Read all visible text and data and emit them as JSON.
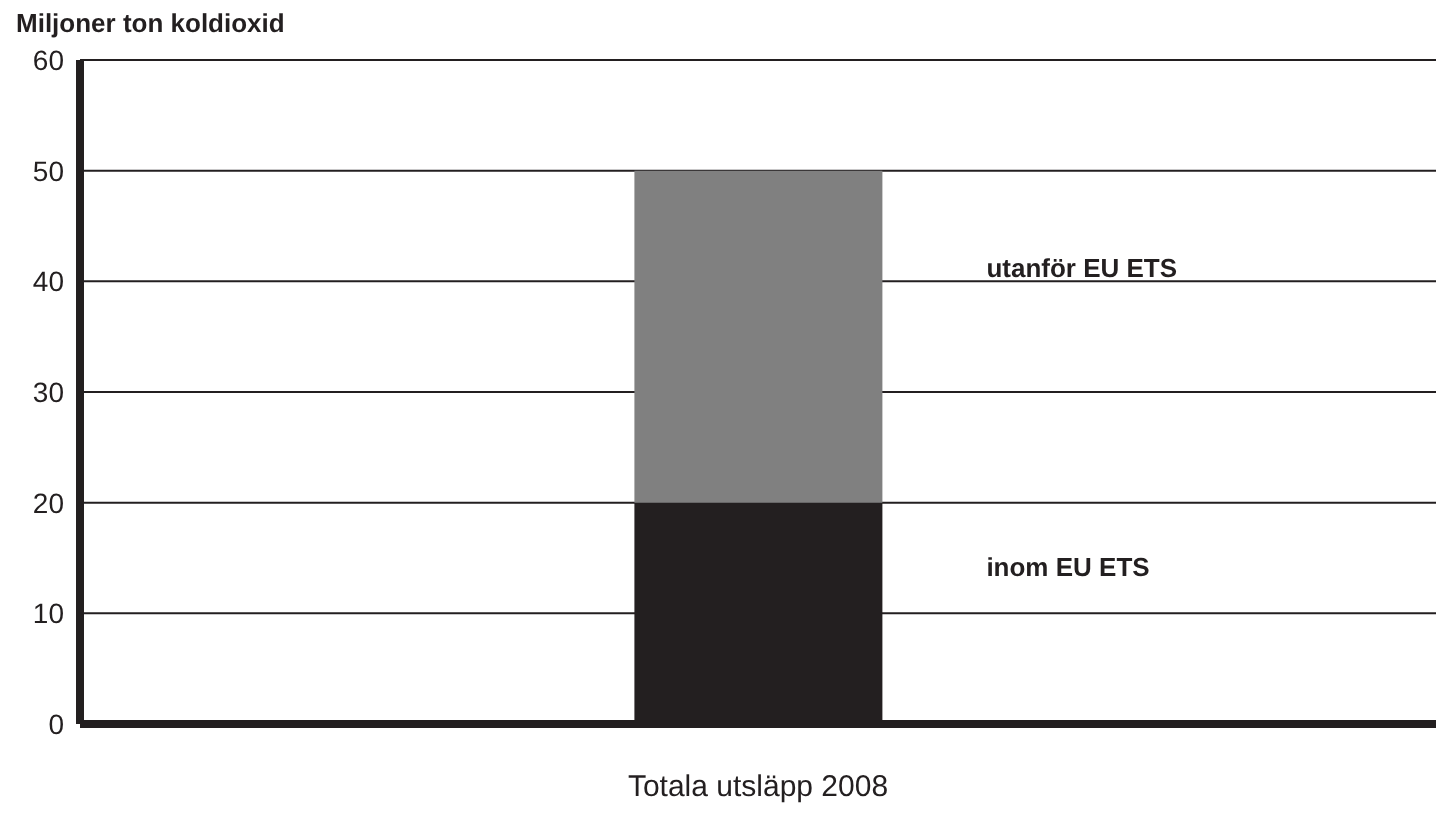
{
  "chart_data": {
    "type": "bar",
    "stacked": true,
    "ylabel": "Miljoner ton koldioxid",
    "xlabel": "Totala utsläpp 2008",
    "categories": [
      null
    ],
    "series": [
      {
        "name": "inom EU ETS",
        "color": "#231f20",
        "values": [
          20
        ]
      },
      {
        "name": "utanför EU ETS",
        "color": "#808080",
        "values": [
          30
        ]
      }
    ],
    "ylim": [
      0,
      60
    ],
    "yticks": [
      0,
      10,
      20,
      30,
      40,
      50,
      60
    ],
    "grid": "y",
    "legend": false
  }
}
